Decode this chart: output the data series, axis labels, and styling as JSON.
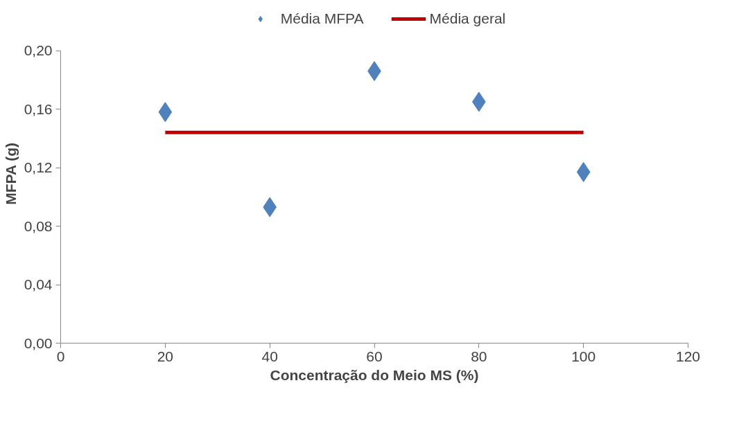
{
  "chart_data": {
    "type": "scatter",
    "xlabel": "Concentração do Meio MS (%)",
    "ylabel": "MFPA (g)",
    "series": [
      {
        "name": "Média MFPA",
        "color": "#4f81bd",
        "marker": "diamond",
        "x": [
          20,
          40,
          60,
          80,
          100
        ],
        "values": [
          0.158,
          0.093,
          0.186,
          0.165,
          0.117
        ]
      },
      {
        "name": "Média geral",
        "type": "line",
        "color": "#c00000",
        "x": [
          20,
          100
        ],
        "values": [
          0.144,
          0.144
        ]
      }
    ],
    "xlim": [
      0,
      120
    ],
    "xticks": [
      0,
      20,
      40,
      60,
      80,
      100,
      120
    ],
    "ylim": [
      0,
      0.2
    ],
    "yticks": [
      {
        "value": 0,
        "label": "0,00"
      },
      {
        "value": 0.04,
        "label": "0,04"
      },
      {
        "value": 0.08,
        "label": "0,08"
      },
      {
        "value": 0.12,
        "label": "0,12"
      },
      {
        "value": 0.16,
        "label": "0,16"
      },
      {
        "value": 0.2,
        "label": "0,20"
      }
    ],
    "grid": false,
    "legend": "top"
  }
}
